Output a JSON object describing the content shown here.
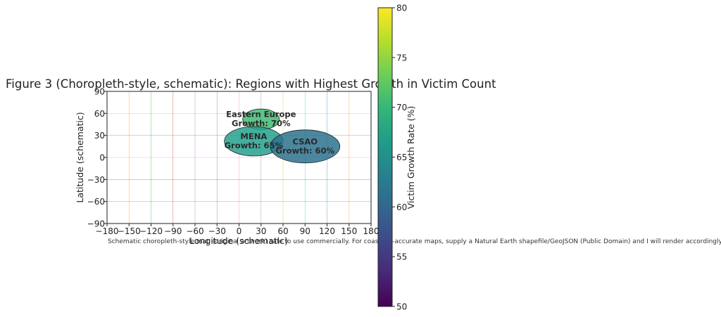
{
  "chart_data": {
    "type": "choropleth-schematic",
    "title": "Figure 3 (Choropleth-style, schematic): Regions with Highest Growth in Victim Count",
    "xlabel": "Longitude (schematic)",
    "ylabel": "Latitude (schematic)",
    "xlim": [
      -180,
      180
    ],
    "ylim": [
      -90,
      90
    ],
    "xticks": [
      -180,
      -150,
      -120,
      -90,
      -60,
      -30,
      0,
      30,
      60,
      90,
      120,
      150,
      180
    ],
    "yticks": [
      -90,
      -60,
      -30,
      0,
      30,
      60,
      90
    ],
    "xtick_labels": [
      "−180",
      "−150",
      "−120",
      "−90",
      "−60",
      "−30",
      "0",
      "30",
      "60",
      "90",
      "120",
      "150",
      "180"
    ],
    "ytick_labels": [
      "−90",
      "−60",
      "−30",
      "0",
      "30",
      "60",
      "90"
    ],
    "grid": true,
    "regions": [
      {
        "name": "Eastern Europe",
        "label_line1": "Eastern Europe",
        "label_line2": "Growth: 70%",
        "growth": 70,
        "lon": 30,
        "lat": 52,
        "width_deg": 50,
        "height_deg": 28,
        "color": "#3fbc73"
      },
      {
        "name": "MENA",
        "label_line1": "MENA",
        "label_line2": "Growth: 65%",
        "growth": 65,
        "lon": 20,
        "lat": 22,
        "width_deg": 80,
        "height_deg": 40,
        "color": "#25a18e"
      },
      {
        "name": "CSAO",
        "label_line1": "CSAO",
        "label_line2": "Growth: 60%",
        "growth": 60,
        "lon": 90,
        "lat": 15,
        "width_deg": 95,
        "height_deg": 45,
        "color": "#2c728e"
      }
    ],
    "colorbar": {
      "label": "Victim Growth Rate (%)",
      "range": [
        50,
        80
      ],
      "ticks": [
        50,
        55,
        60,
        65,
        70,
        75,
        80
      ],
      "tick_labels": [
        "50",
        "55",
        "60",
        "65",
        "70",
        "75",
        "80"
      ],
      "colormap": "viridis",
      "stops": [
        "#440154",
        "#482878",
        "#3e4989",
        "#31688e",
        "#26828e",
        "#1f9e89",
        "#35b779",
        "#6ece58",
        "#b5de2b",
        "#fde725"
      ]
    },
    "note": "Schematic choropleth-style map (original artwork) safe to use commercially. For coastline-accurate maps, supply a Natural Earth shapefile/GeoJSON (Public Domain) and I will render accordingly."
  }
}
